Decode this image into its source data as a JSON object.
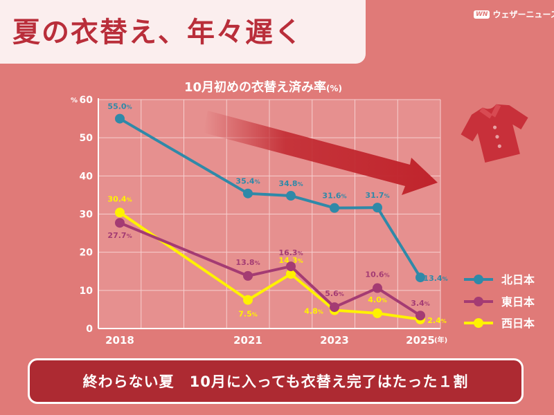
{
  "headline": "夏の衣替え、年々遅く",
  "brand": {
    "mark": "WN",
    "name": "ウェザーニュース"
  },
  "chart_title": "10月初めの衣替え済み率",
  "chart_title_unit": "(%)",
  "banner": "終わらない夏　10月に入っても衣替え完了はたった１割",
  "colors": {
    "background": "#e07a78",
    "plot": "#e6908f",
    "grid": "#f7cfcf",
    "north": "#2f89a8",
    "east": "#a43b73",
    "west": "#fff200",
    "arrow": "#c0242c",
    "shirt": "#c8303a"
  },
  "icons": [
    "trend-arrow-icon",
    "shirt-icon"
  ],
  "chart_data": {
    "type": "line",
    "title": "10月初めの衣替え済み率",
    "ylabel": "%",
    "xlabel": "(年)",
    "x": [
      2018,
      2021,
      2022,
      2023,
      2024,
      2025
    ],
    "x_tick_labels": [
      "2018",
      "2021",
      "2023",
      "2025"
    ],
    "x_tick_values": [
      2018,
      2021,
      2023,
      2025
    ],
    "ylim": [
      0,
      60
    ],
    "y_ticks": [
      0,
      10,
      20,
      30,
      40,
      50,
      60
    ],
    "grid": true,
    "legend_position": "right",
    "series": [
      {
        "name": "北日本",
        "values": [
          55.0,
          35.4,
          34.8,
          31.6,
          31.7,
          13.4
        ],
        "labels": [
          "55.0",
          "35.4",
          "34.8",
          "31.6",
          "31.7",
          "13.4"
        ]
      },
      {
        "name": "東日本",
        "values": [
          27.7,
          13.8,
          16.3,
          5.6,
          10.6,
          3.4
        ],
        "labels": [
          "27.7",
          "13.8",
          "16.3",
          "5.6",
          "10.6",
          "3.4"
        ]
      },
      {
        "name": "西日本",
        "values": [
          30.4,
          7.5,
          14.3,
          4.8,
          4.0,
          2.4
        ],
        "labels": [
          "30.4",
          "7.5",
          "14.3",
          "4.8",
          "4.0",
          "2.4"
        ]
      }
    ],
    "label_suffix": "%"
  }
}
